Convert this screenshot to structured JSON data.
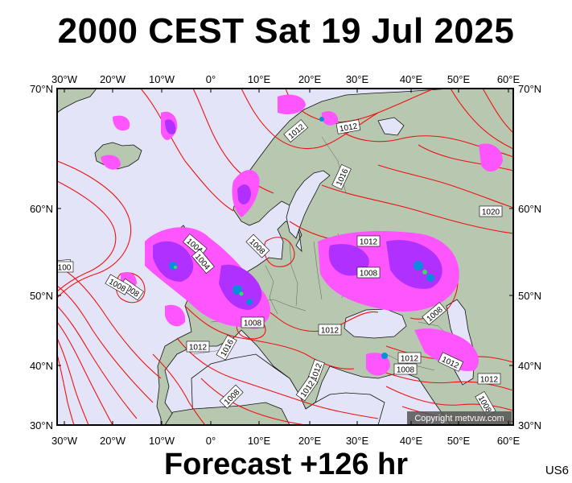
{
  "title": "2000 CEST Sat 19 Jul 2025",
  "footer": "Forecast +126 hr",
  "code": "US6",
  "copyright": "Copyright metvuw.com",
  "lon_labels": [
    "30°W",
    "20°W",
    "10°W",
    "0°",
    "10°E",
    "20°E",
    "30°E",
    "40°E",
    "50°E",
    "60°E"
  ],
  "lat_labels": [
    "70°N",
    "60°N",
    "50°N",
    "40°N",
    "30°N"
  ],
  "isobar_labels": [
    "1012",
    "1012",
    "1016",
    "1020",
    "1012",
    "1008",
    "1008",
    "1004",
    "1004",
    "1008",
    "1008",
    "12",
    "1008",
    "1012",
    "1012",
    "1016",
    "1012",
    "1012",
    "1012",
    "1008",
    "1012",
    "1008",
    "1012",
    "1008",
    "1008",
    "100"
  ],
  "colors": {
    "sea": "#e4e4f8",
    "land": "#b8c8b0",
    "isobar": "#ee1111",
    "rain_light": "#ff55ff",
    "rain_medium": "#b030ff",
    "rain_heavy": "#0a8cdc",
    "rain_extreme": "#30e060"
  }
}
